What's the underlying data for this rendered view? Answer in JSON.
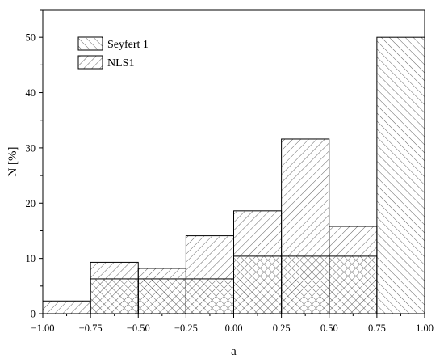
{
  "chart_data": {
    "type": "bar",
    "title": "",
    "xlabel": "a",
    "ylabel": "N [%]",
    "xlim": [
      -1.0,
      1.0
    ],
    "ylim": [
      0,
      55
    ],
    "xticks": [
      "-1.00",
      "-0.75",
      "-0.50",
      "-0.25",
      "0.00",
      "0.25",
      "0.50",
      "0.75",
      "1.00"
    ],
    "yticks": [
      "0",
      "10",
      "20",
      "30",
      "40",
      "50"
    ],
    "bin_edges": [
      -1.0,
      -0.75,
      -0.5,
      -0.25,
      0.0,
      0.25,
      0.5,
      0.75,
      1.0
    ],
    "series": [
      {
        "name": "Seyfert 1",
        "hatch": "backslash",
        "values": [
          0,
          6.3,
          6.3,
          6.3,
          10.4,
          10.4,
          10.4,
          50
        ]
      },
      {
        "name": "NLS1",
        "hatch": "slash",
        "values": [
          2.3,
          9.3,
          8.2,
          14.1,
          18.6,
          31.6,
          15.8,
          0
        ]
      }
    ],
    "legend_position": "top-left",
    "grid": false
  },
  "colors": {
    "stroke": "#000000",
    "hatch": "#3a3a3a",
    "background": "#ffffff"
  }
}
